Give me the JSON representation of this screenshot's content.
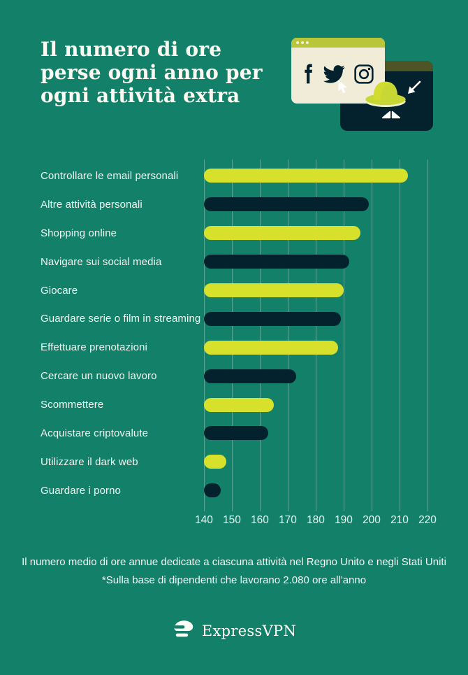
{
  "header": {
    "title": "Il numero di ore\nperse ogni anno per\nogni attività extra"
  },
  "illustration": {
    "icons": [
      "facebook-icon",
      "twitter-icon",
      "instagram-icon",
      "pointer-cursor-icon",
      "spy-hat-icon",
      "spy-eyes-icon",
      "arrow-cursor-icon"
    ],
    "description": "browser window with social icons overlapping dark spy window"
  },
  "chart_data": {
    "type": "bar",
    "orientation": "horizontal",
    "title": "Il numero di ore perse ogni anno per ogni attività extra",
    "categories": [
      "Controllare le email personali",
      "Altre attività personali",
      "Shopping online",
      "Navigare sui social media",
      "Giocare",
      "Guardare serie o film in streaming",
      "Effettuare prenotazioni",
      "Cercare un nuovo lavoro",
      "Scommettere",
      "Acquistare criptovalute",
      "Utilizzare il dark web",
      "Guardare i porno"
    ],
    "values": [
      213,
      199,
      196,
      192,
      190,
      189,
      188,
      173,
      165,
      163,
      148,
      146
    ],
    "unit": "ore all'anno",
    "xlim": [
      140,
      220
    ],
    "x_ticks": [
      140,
      150,
      160,
      170,
      180,
      190,
      200,
      210,
      220
    ],
    "grid": true,
    "legend": "none",
    "bar_color_cycle": [
      "#D7E02B",
      "#04222E"
    ]
  },
  "footer": {
    "line1": "Il numero medio di ore annue dedicate a ciascuna attività nel Regno Unito e negli Stati Uniti",
    "line2": "*Sulla base di dipendenti che lavorano 2.080 ore all'anno"
  },
  "brand": {
    "name": "ExpressVPN"
  },
  "colors": {
    "background": "#13816A",
    "lime": "#D7E02B",
    "navy": "#04222E",
    "cream": "#F0ECD8",
    "olive_titlebar": "#B9C63A",
    "dark_olive": "#4D5426",
    "text": "#FCFAF1",
    "gridline": "rgba(236,246,241,0.33)"
  }
}
